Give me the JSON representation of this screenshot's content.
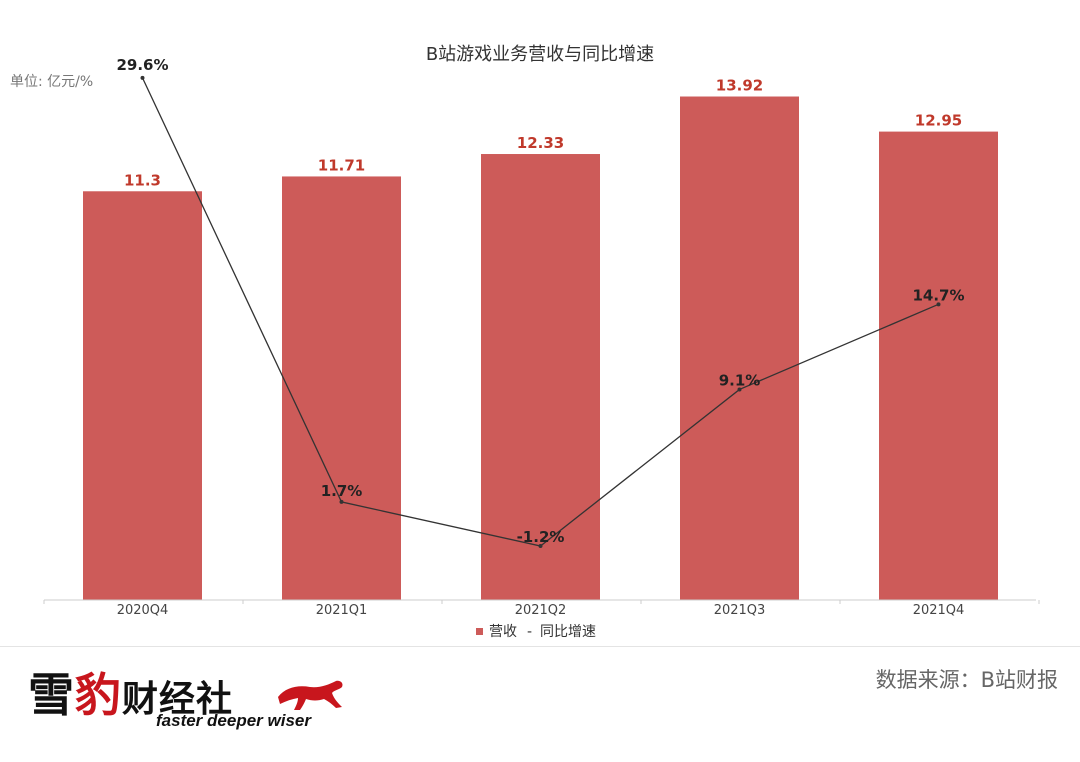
{
  "chart_data": {
    "type": "bar",
    "title": "B站游戏业务营收与同比增速",
    "unit_label": "单位: 亿元/%",
    "categories": [
      "2020Q4",
      "2021Q1",
      "2021Q2",
      "2021Q3",
      "2021Q4"
    ],
    "series": [
      {
        "name": "营收",
        "type": "bar",
        "values": [
          11.3,
          11.71,
          12.33,
          13.92,
          12.95
        ],
        "labels": [
          "11.3",
          "11.71",
          "12.33",
          "13.92",
          "12.95"
        ],
        "color": "#cd5b59"
      },
      {
        "name": "同比增速",
        "type": "line",
        "values": [
          29.6,
          1.7,
          -1.2,
          9.1,
          14.7
        ],
        "labels": [
          "29.6%",
          "1.7%",
          "-1.2%",
          "9.1%",
          "14.7%"
        ],
        "color": "#333333"
      }
    ],
    "ylim_bar": [
      0,
      14
    ],
    "ylim_line": [
      -5,
      30
    ],
    "grid": false,
    "legend_position": "bottom-center",
    "legend_separator": "-"
  },
  "footer": {
    "logo_chars": [
      "雪",
      "豹",
      "财经社"
    ],
    "tagline": "faster deeper wiser",
    "source": "数据来源：B站财报"
  },
  "colors": {
    "bar": "#cd5b59",
    "bar_label": "#c0392b",
    "line": "#333333",
    "logo_red": "#c8161d"
  },
  "icons": {
    "logo_mark": "leopard-icon"
  }
}
